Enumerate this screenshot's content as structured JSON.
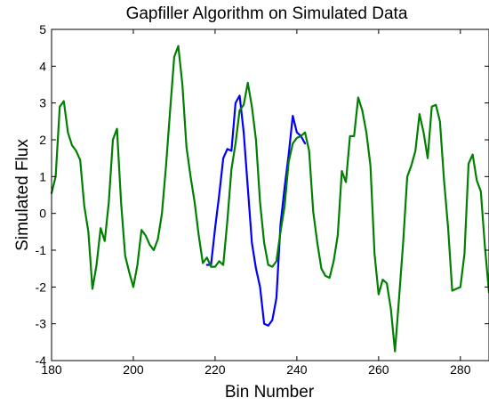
{
  "chart_data": {
    "type": "line",
    "title": "Gapfiller Algorithm on Simulated Data",
    "xlabel": "Bin Number",
    "ylabel": "Simulated Flux",
    "xlim": [
      180,
      287
    ],
    "ylim": [
      -4,
      5
    ],
    "x_ticks": [
      180,
      200,
      220,
      240,
      260,
      280
    ],
    "y_ticks": [
      -4,
      -3,
      -2,
      -1,
      0,
      1,
      2,
      3,
      4,
      5
    ],
    "x_tick_labels": [
      "180",
      "200",
      "220",
      "240",
      "260",
      "280"
    ],
    "y_tick_labels": [
      "-4",
      "-3",
      "-2",
      "-1",
      "0",
      "1",
      "2",
      "3",
      "4",
      "5"
    ],
    "grid": false,
    "legend": "none",
    "series": [
      {
        "color": "#0000ff",
        "x": [
          218,
          219,
          220,
          221,
          222,
          223,
          224,
          225,
          226,
          227,
          228,
          229,
          230,
          231,
          232,
          233,
          234,
          235,
          236,
          237,
          238,
          239,
          240,
          241,
          242
        ],
        "y": [
          -1.4,
          -1.4,
          -0.4,
          0.5,
          1.5,
          1.75,
          1.7,
          3.0,
          3.2,
          2.2,
          0.7,
          -0.8,
          -1.5,
          -2.0,
          -3.0,
          -3.05,
          -2.9,
          -2.3,
          -0.3,
          0.7,
          1.6,
          2.65,
          2.2,
          2.1,
          1.9
        ]
      },
      {
        "color": "#008000",
        "x": [
          180,
          181,
          182,
          183,
          184,
          185,
          186,
          187,
          188,
          189,
          190,
          191,
          192,
          193,
          194,
          195,
          196,
          197,
          198,
          199,
          200,
          201,
          202,
          203,
          204,
          205,
          206,
          207,
          208,
          209,
          210,
          211,
          212,
          213,
          214,
          215,
          216,
          217,
          218,
          219,
          220,
          221,
          222,
          223,
          224,
          225,
          226,
          227,
          228,
          229,
          230,
          231,
          232,
          233,
          234,
          235,
          236,
          237,
          238,
          239,
          240,
          241,
          242,
          243,
          244,
          245,
          246,
          247,
          248,
          249,
          250,
          251,
          252,
          253,
          254,
          255,
          256,
          257,
          258,
          259,
          260,
          261,
          262,
          263,
          264,
          265,
          266,
          267,
          268,
          269,
          270,
          271,
          272,
          273,
          274,
          275,
          276,
          277,
          278,
          279,
          280,
          281,
          282,
          283,
          284,
          285,
          286,
          287
        ],
        "y": [
          0.55,
          1.0,
          2.9,
          3.05,
          2.2,
          1.85,
          1.7,
          1.45,
          0.2,
          -0.5,
          -2.05,
          -1.4,
          -0.4,
          -0.75,
          0.3,
          2.0,
          2.3,
          0.3,
          -1.15,
          -1.6,
          -2.0,
          -1.4,
          -0.45,
          -0.6,
          -0.85,
          -1.0,
          -0.7,
          0.0,
          1.3,
          2.8,
          4.25,
          4.55,
          3.5,
          1.8,
          1.0,
          0.3,
          -0.6,
          -1.35,
          -1.2,
          -1.45,
          -1.45,
          -1.3,
          -1.4,
          -0.2,
          1.2,
          1.9,
          2.8,
          2.95,
          3.55,
          2.9,
          2.0,
          0.3,
          -0.8,
          -1.4,
          -1.45,
          -1.3,
          -0.5,
          0.2,
          1.4,
          1.9,
          2.05,
          2.1,
          2.2,
          1.7,
          0.05,
          -0.8,
          -1.5,
          -1.7,
          -1.75,
          -1.3,
          -0.6,
          1.15,
          0.85,
          2.1,
          2.1,
          3.15,
          2.8,
          2.2,
          1.3,
          -1.1,
          -2.2,
          -1.8,
          -1.9,
          -2.6,
          -3.75,
          -2.3,
          -0.8,
          1.0,
          1.3,
          1.7,
          2.7,
          2.2,
          1.5,
          2.9,
          2.95,
          2.5,
          0.9,
          -0.4,
          -2.1,
          -2.05,
          -2.0,
          -1.1,
          1.35,
          1.6,
          0.9,
          0.6,
          -0.9,
          -2.15
        ]
      }
    ]
  }
}
